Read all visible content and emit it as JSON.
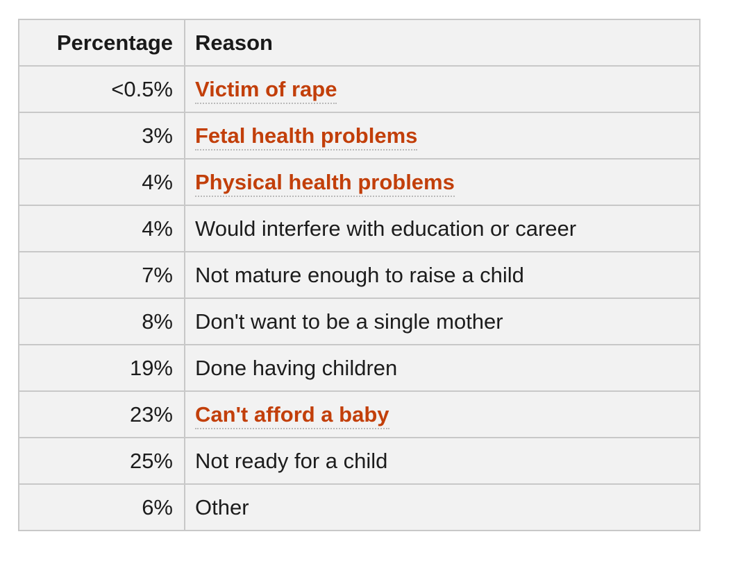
{
  "table": {
    "headers": {
      "percentage": "Percentage",
      "reason": "Reason"
    },
    "rows": [
      {
        "percentage": "<0.5%",
        "reason": "Victim of rape",
        "is_link": true
      },
      {
        "percentage": "3%",
        "reason": "Fetal health problems",
        "is_link": true
      },
      {
        "percentage": "4%",
        "reason": "Physical health problems",
        "is_link": true
      },
      {
        "percentage": "4%",
        "reason": "Would interfere with education or career",
        "is_link": false
      },
      {
        "percentage": "7%",
        "reason": "Not mature enough to raise a child",
        "is_link": false
      },
      {
        "percentage": "8%",
        "reason": "Don't want to be a single mother",
        "is_link": false
      },
      {
        "percentage": "19%",
        "reason": "Done having children",
        "is_link": false
      },
      {
        "percentage": "23%",
        "reason": "Can't afford a baby",
        "is_link": true
      },
      {
        "percentage": "25%",
        "reason": "Not ready for a child",
        "is_link": false
      },
      {
        "percentage": "6%",
        "reason": "Other",
        "is_link": false
      }
    ]
  },
  "colors": {
    "link": "#c23f0a",
    "text": "#1c1c1c",
    "cell_background": "#f2f2f2",
    "border": "#c8c8c8"
  }
}
